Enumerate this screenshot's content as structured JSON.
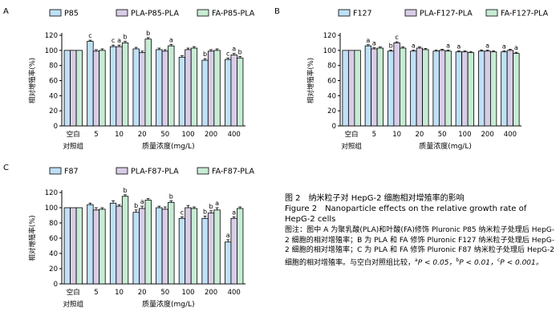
{
  "chart_data": [
    {
      "panel": "A",
      "type": "bar",
      "ylabel": "相对增殖率(%)",
      "xlabel": "质量浓度(mg/L)",
      "control_label": [
        "空白",
        "对照组"
      ],
      "categories": [
        "",
        "5",
        "10",
        "20",
        "50",
        "100",
        "200",
        "400"
      ],
      "ylim": [
        0,
        120
      ],
      "yticks": [
        0,
        20,
        40,
        60,
        80,
        100,
        120
      ],
      "series": [
        {
          "name": "P85",
          "values": [
            100,
            112,
            105,
            102,
            101,
            91,
            87,
            88
          ],
          "errors": [
            0,
            1.5,
            2,
            2,
            2,
            2,
            2,
            2
          ]
        },
        {
          "name": "PLA-P85-PLA",
          "values": [
            100,
            99,
            105,
            97,
            99,
            101,
            99,
            94
          ],
          "errors": [
            0,
            2,
            2,
            2,
            2,
            2,
            2,
            2
          ]
        },
        {
          "name": "FA-P85-PLA",
          "values": [
            100,
            100,
            110,
            115,
            106,
            103,
            100,
            90
          ],
          "errors": [
            0,
            2,
            2,
            2,
            2,
            2,
            2,
            2
          ]
        }
      ],
      "annotations": [
        {
          "index": 1,
          "series": 0,
          "text": "c"
        },
        {
          "index": 2,
          "series": 0,
          "text": "c"
        },
        {
          "index": 2,
          "series": 1,
          "text": "a"
        },
        {
          "index": 2,
          "series": 2,
          "text": "b"
        },
        {
          "index": 3,
          "series": 2,
          "text": "b"
        },
        {
          "index": 4,
          "series": 2,
          "text": "a"
        },
        {
          "index": 6,
          "series": 0,
          "text": "b"
        },
        {
          "index": 7,
          "series": 0,
          "text": "c"
        },
        {
          "index": 7,
          "series": 1,
          "text": "a"
        },
        {
          "index": 7,
          "series": 2,
          "text": "b"
        }
      ]
    },
    {
      "panel": "B",
      "type": "bar",
      "ylabel": "相对增殖率(%)",
      "xlabel": "质量浓度(mg/L)",
      "control_label": [
        "空白",
        "对照组"
      ],
      "categories": [
        "",
        "5",
        "10",
        "20",
        "50",
        "100",
        "200",
        "400"
      ],
      "ylim": [
        0,
        120
      ],
      "yticks": [
        0,
        20,
        40,
        60,
        80,
        100,
        120
      ],
      "series": [
        {
          "name": "F127",
          "values": [
            100,
            106,
            99,
            99,
            99,
            98,
            99,
            98
          ],
          "errors": [
            0,
            1.5,
            1.5,
            1.5,
            1.5,
            1.5,
            1.5,
            1.5
          ]
        },
        {
          "name": "PLA-F127-PLA",
          "values": [
            100,
            102,
            110,
            103,
            100,
            98,
            99,
            100
          ],
          "errors": [
            0,
            1.5,
            1.5,
            1.5,
            1.5,
            1.5,
            1.5,
            1.5
          ]
        },
        {
          "name": "FA-F127-PLA",
          "values": [
            100,
            103,
            103,
            101,
            99,
            97,
            98,
            96
          ],
          "errors": [
            0,
            1.5,
            1.5,
            1.5,
            1.5,
            1.5,
            1.5,
            1.5
          ]
        }
      ],
      "annotations": [
        {
          "index": 1,
          "series": 0,
          "text": "a"
        },
        {
          "index": 1,
          "series": 1,
          "text": "a"
        },
        {
          "index": 2,
          "series": 0,
          "text": "b"
        },
        {
          "index": 2,
          "series": 1,
          "text": "c"
        },
        {
          "index": 3,
          "series": 0,
          "text": "a"
        },
        {
          "index": 4,
          "series": 2,
          "text": "a"
        },
        {
          "index": 5,
          "series": 0,
          "text": "a"
        },
        {
          "index": 6,
          "series": 1,
          "text": "a"
        },
        {
          "index": 7,
          "series": 0,
          "text": "a"
        },
        {
          "index": 7,
          "series": 2,
          "text": "a"
        }
      ]
    },
    {
      "panel": "C",
      "type": "bar",
      "ylabel": "相对增殖率(%)",
      "xlabel": "质量浓度(mg/L)",
      "control_label": [
        "空白",
        "对照组"
      ],
      "categories": [
        "",
        "5",
        "10",
        "20",
        "50",
        "100",
        "200",
        "400"
      ],
      "ylim": [
        0,
        120
      ],
      "yticks": [
        0,
        20,
        40,
        60,
        80,
        100,
        120
      ],
      "series": [
        {
          "name": "F87",
          "values": [
            100,
            104,
            106,
            94,
            100,
            86,
            86,
            55
          ],
          "errors": [
            0,
            2,
            3,
            3,
            2,
            2,
            3,
            3
          ]
        },
        {
          "name": "PLA-F87-PLA",
          "values": [
            100,
            97,
            102,
            99,
            98,
            100,
            93,
            86
          ],
          "errors": [
            0,
            3,
            2,
            3,
            3,
            3,
            3,
            2
          ]
        },
        {
          "name": "FA-F87-PLA",
          "values": [
            100,
            98,
            115,
            110,
            107,
            99,
            97,
            99
          ],
          "errors": [
            0,
            2,
            2,
            2,
            2,
            2,
            3,
            2
          ]
        }
      ],
      "annotations": [
        {
          "index": 2,
          "series": 2,
          "text": "b"
        },
        {
          "index": 3,
          "series": 0,
          "text": "b"
        },
        {
          "index": 3,
          "series": 1,
          "text": "a"
        },
        {
          "index": 4,
          "series": 2,
          "text": "b"
        },
        {
          "index": 5,
          "series": 0,
          "text": "c"
        },
        {
          "index": 6,
          "series": 0,
          "text": "b"
        },
        {
          "index": 6,
          "series": 1,
          "text": "b"
        },
        {
          "index": 6,
          "series": 2,
          "text": "a"
        },
        {
          "index": 7,
          "series": 0,
          "text": "a"
        },
        {
          "index": 7,
          "series": 1,
          "text": "a"
        }
      ]
    }
  ],
  "colors": {
    "series": [
      "#bfe0f6",
      "#d8cde6",
      "#c7ecd4"
    ],
    "stroke": "#000000"
  },
  "caption": {
    "title": "图 2　纳米粒子对 HepG-2 细胞相对增殖率的影响",
    "english_line1": "Figure 2　Nanoparticle effects on the relative growth rate of",
    "english_line2": "HepG-2 cells",
    "note": "图注：图中 A 为聚乳酸(PLA)和叶酸(FA)修饰 Pluronic P85 纳米粒子处理后 HepG-2 细胞的相对增殖率；B 为 PLA 和 FA 修饰 Pluronic F127 纳米粒子处理后 HepG-2 细胞的相对增殖率；C 为 PLA 和 FA 修饰 Pluronic F87 纳米粒子处理后 HepG-2 细胞的相对增殖率。与空白对照组比较，",
    "sig_a": "a",
    "sig_a_text": "P < 0.05，",
    "sig_b": "b",
    "sig_b_text": "P < 0.01，",
    "sig_c": "c",
    "sig_c_text": "P < 0.001。"
  }
}
